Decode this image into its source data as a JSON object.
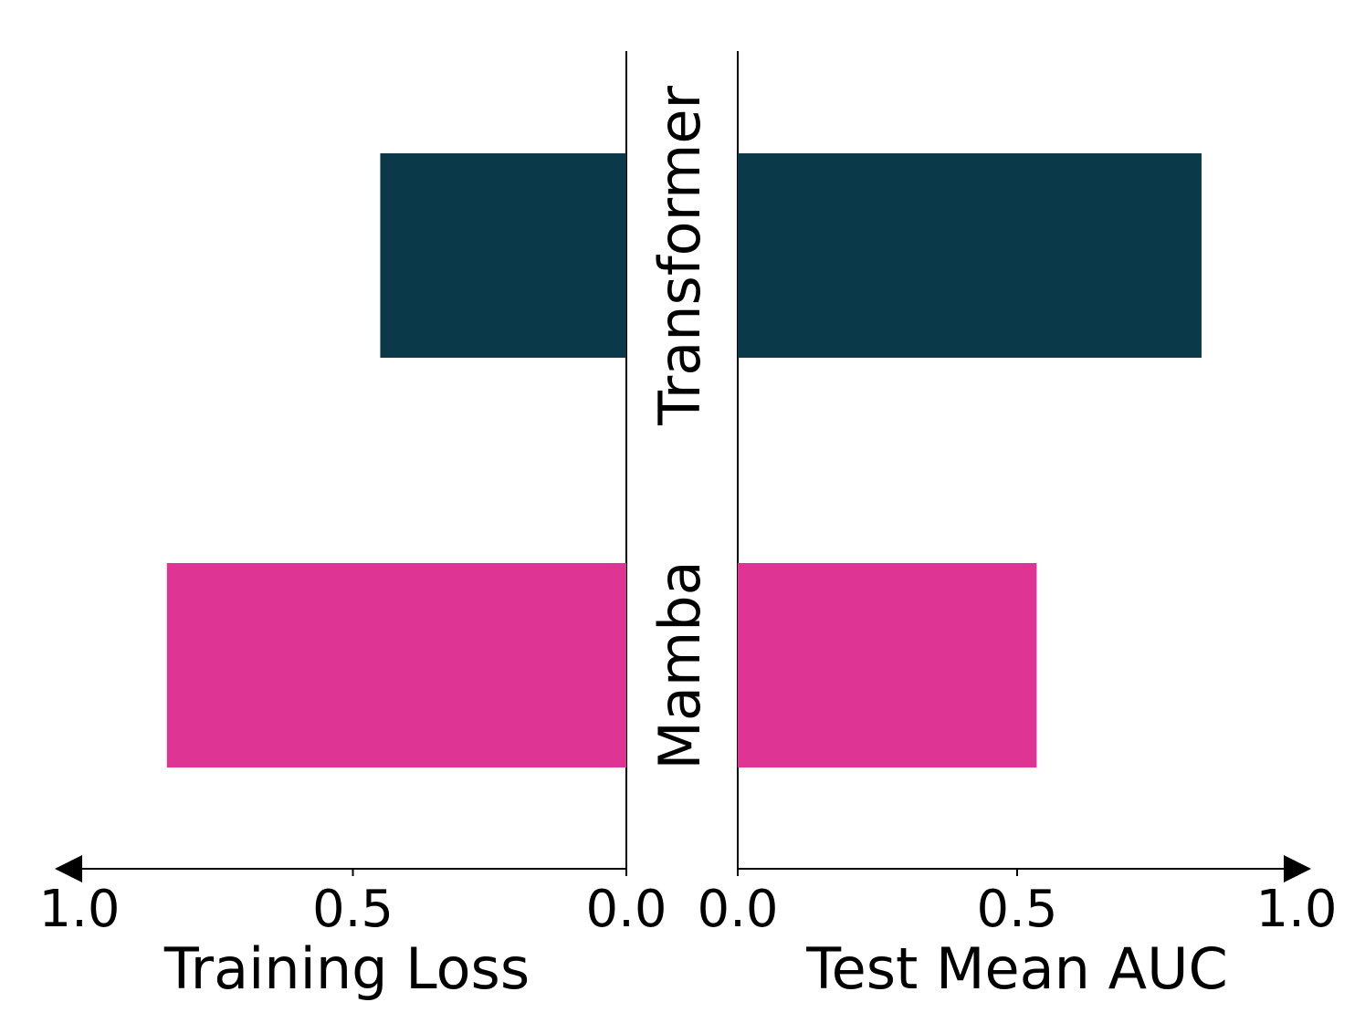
{
  "chart_data": [
    {
      "type": "bar",
      "orientation": "horizontal",
      "direction": "leftward",
      "xlabel": "Training Loss",
      "xlim": [
        0,
        1.0
      ],
      "ticks": [
        "1.0",
        "0.5",
        "0.0"
      ],
      "tick_values": [
        1.0,
        0.5,
        0.0
      ],
      "categories": [
        "Transformer",
        "Mamba"
      ],
      "values": [
        0.45,
        0.84
      ],
      "colors": [
        "#0a3a4a",
        "#de3595"
      ]
    },
    {
      "type": "bar",
      "orientation": "horizontal",
      "direction": "rightward",
      "xlabel": "Test Mean AUC",
      "xlim": [
        0,
        1.0
      ],
      "ticks": [
        "0.0",
        "0.5",
        "1.0"
      ],
      "tick_values": [
        0.0,
        0.5,
        1.0
      ],
      "categories": [
        "Transformer",
        "Mamba"
      ],
      "values": [
        0.83,
        0.535
      ],
      "colors": [
        "#0a3a4a",
        "#de3595"
      ]
    }
  ],
  "category_labels": [
    "Transformer",
    "Mamba"
  ],
  "grid": false,
  "legend": "none"
}
